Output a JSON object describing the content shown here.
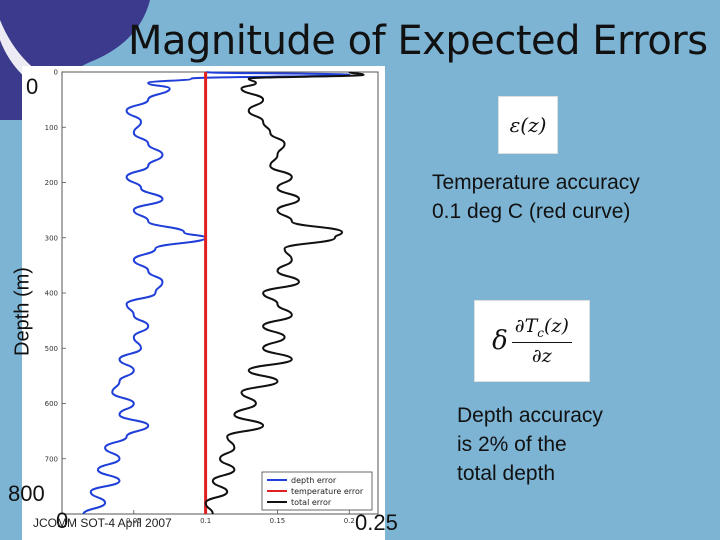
{
  "slide": {
    "title": "Magnitude of Expected Errors",
    "footer": "JCOMM SOT-4 April 2007",
    "label_zero_top": "0",
    "label_depth_max": "800",
    "label_x_zero": "0",
    "label_x_max": "0.25",
    "ylabel": "Depth (m)",
    "equation_1": "ε(z)",
    "equation_2_prefix": "δ",
    "equation_2_num": "∂T",
    "equation_2_sub": "c",
    "equation_2_num_tail": "(z)",
    "equation_2_den": "∂z",
    "note_temperature_line1": "Temperature accuracy",
    "note_temperature_line2": "0.1 deg C (red curve)",
    "note_depth_line1": "Depth accuracy",
    "note_depth_line2": "is 2% of the",
    "note_depth_line3": "total depth"
  },
  "chart_data": {
    "type": "line",
    "xlim": [
      0,
      0.22
    ],
    "ylim": [
      0,
      800
    ],
    "y_inverted": true,
    "x_ticks": [
      "0.05",
      "0.1",
      "0.15",
      "0.2"
    ],
    "x_tick_values": [
      0.05,
      0.1,
      0.15,
      0.2
    ],
    "y_ticks": [
      "0",
      "100",
      "200",
      "300",
      "400",
      "500",
      "600",
      "700"
    ],
    "y_tick_values": [
      0,
      100,
      200,
      300,
      400,
      500,
      600,
      700
    ],
    "grid": false,
    "legend_position": "bottom-right",
    "series": [
      {
        "name": "depth error",
        "color": "#1f3fd8",
        "depth": [
          0,
          5,
          12,
          20,
          30,
          50,
          70,
          90,
          110,
          130,
          150,
          170,
          190,
          210,
          230,
          250,
          270,
          290,
          300,
          320,
          340,
          360,
          380,
          400,
          420,
          440,
          460,
          480,
          500,
          520,
          540,
          560,
          580,
          600,
          620,
          640,
          660,
          680,
          700,
          720,
          740,
          760,
          780,
          800
        ],
        "values": [
          0.1,
          0.2,
          0.09,
          0.06,
          0.075,
          0.06,
          0.045,
          0.055,
          0.05,
          0.06,
          0.07,
          0.06,
          0.045,
          0.055,
          0.07,
          0.05,
          0.06,
          0.085,
          0.1,
          0.065,
          0.05,
          0.06,
          0.07,
          0.065,
          0.045,
          0.05,
          0.06,
          0.05,
          0.055,
          0.04,
          0.05,
          0.04,
          0.035,
          0.05,
          0.04,
          0.06,
          0.045,
          0.03,
          0.04,
          0.025,
          0.04,
          0.02,
          0.03,
          0.015
        ]
      },
      {
        "name": "temperature error",
        "color": "#e02020",
        "depth": [
          0,
          800
        ],
        "values": [
          0.1,
          0.1
        ]
      },
      {
        "name": "total error",
        "color": "#111111",
        "depth": [
          0,
          5,
          12,
          20,
          30,
          50,
          70,
          90,
          110,
          130,
          150,
          170,
          190,
          210,
          230,
          250,
          270,
          290,
          300,
          320,
          340,
          360,
          380,
          400,
          420,
          440,
          460,
          480,
          500,
          520,
          540,
          560,
          580,
          600,
          620,
          640,
          660,
          680,
          700,
          720,
          740,
          760,
          780,
          800
        ],
        "values": [
          0.2,
          0.21,
          0.13,
          0.135,
          0.125,
          0.14,
          0.13,
          0.14,
          0.145,
          0.155,
          0.15,
          0.145,
          0.16,
          0.15,
          0.165,
          0.15,
          0.16,
          0.195,
          0.19,
          0.155,
          0.16,
          0.15,
          0.165,
          0.14,
          0.15,
          0.16,
          0.14,
          0.155,
          0.14,
          0.16,
          0.13,
          0.15,
          0.125,
          0.135,
          0.12,
          0.14,
          0.115,
          0.12,
          0.11,
          0.12,
          0.105,
          0.115,
          0.1,
          0.105
        ]
      }
    ]
  }
}
